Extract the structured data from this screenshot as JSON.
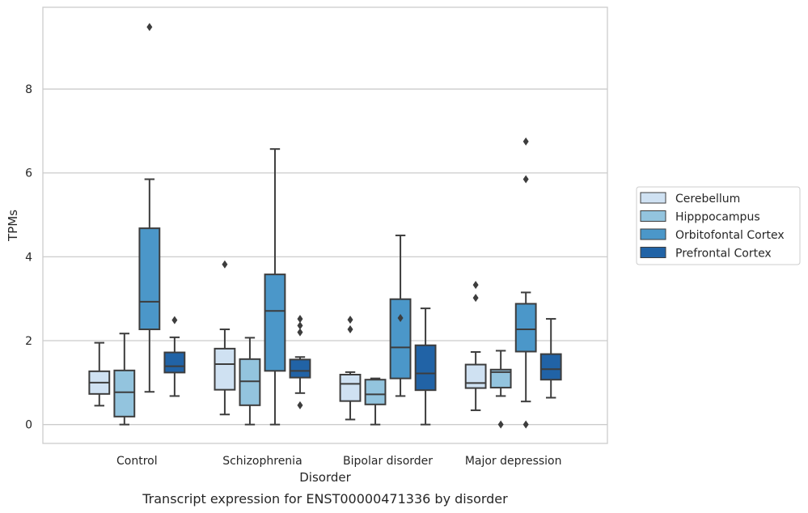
{
  "caption": "Transcript expression for ENST00000471336 by disorder",
  "chart_data": {
    "type": "box",
    "xlabel": "Disorder",
    "ylabel": "TPMs",
    "ylim": [
      -0.45,
      9.95
    ],
    "yticks": [
      0,
      2,
      4,
      6,
      8
    ],
    "grid": true,
    "legend_position": "right",
    "categories": [
      "Control",
      "Schizophrenia",
      "Bipolar disorder",
      "Major depression"
    ],
    "series": [
      {
        "name": "Cerebellum",
        "color": "#cfe1f2",
        "boxes": [
          {
            "whislo": 0.45,
            "q1": 0.73,
            "med": 1.0,
            "q3": 1.27,
            "whishi": 1.95,
            "fliers": []
          },
          {
            "whislo": 0.24,
            "q1": 0.83,
            "med": 1.44,
            "q3": 1.81,
            "whishi": 2.27,
            "fliers": [
              3.82
            ]
          },
          {
            "whislo": 0.12,
            "q1": 0.56,
            "med": 0.97,
            "q3": 1.19,
            "whishi": 1.25,
            "fliers": [
              2.27,
              2.5
            ]
          },
          {
            "whislo": 0.34,
            "q1": 0.87,
            "med": 0.99,
            "q3": 1.43,
            "whishi": 1.73,
            "fliers": [
              3.02,
              3.33
            ]
          }
        ]
      },
      {
        "name": "Hipppocampus",
        "color": "#93c4de",
        "boxes": [
          {
            "whislo": 0.0,
            "q1": 0.19,
            "med": 0.77,
            "q3": 1.29,
            "whishi": 2.17,
            "fliers": []
          },
          {
            "whislo": 0.0,
            "q1": 0.46,
            "med": 1.03,
            "q3": 1.56,
            "whishi": 2.07,
            "fliers": []
          },
          {
            "whislo": 0.0,
            "q1": 0.48,
            "med": 0.72,
            "q3": 1.07,
            "whishi": 1.1,
            "fliers": []
          },
          {
            "whislo": 0.68,
            "q1": 0.88,
            "med": 1.25,
            "q3": 1.31,
            "whishi": 1.76,
            "fliers": [
              0.0
            ]
          }
        ]
      },
      {
        "name": "Orbitofontal Cortex",
        "color": "#4b97c9",
        "boxes": [
          {
            "whislo": 0.78,
            "q1": 2.27,
            "med": 2.93,
            "q3": 4.68,
            "whishi": 5.85,
            "fliers": [
              9.48
            ]
          },
          {
            "whislo": 0.0,
            "q1": 1.28,
            "med": 2.71,
            "q3": 3.58,
            "whishi": 6.57,
            "fliers": []
          },
          {
            "whislo": 0.68,
            "q1": 1.1,
            "med": 1.84,
            "q3": 2.99,
            "whishi": 4.51,
            "fliers": [
              2.54
            ]
          },
          {
            "whislo": 0.55,
            "q1": 1.74,
            "med": 2.27,
            "q3": 2.88,
            "whishi": 3.15,
            "fliers": [
              0.0,
              5.85,
              6.75
            ]
          }
        ]
      },
      {
        "name": "Prefrontal Cortex",
        "color": "#2163a6",
        "boxes": [
          {
            "whislo": 0.68,
            "q1": 1.24,
            "med": 1.39,
            "q3": 1.72,
            "whishi": 2.08,
            "fliers": [
              2.49
            ]
          },
          {
            "whislo": 0.75,
            "q1": 1.12,
            "med": 1.28,
            "q3": 1.55,
            "whishi": 1.61,
            "fliers": [
              0.46,
              2.2,
              2.36,
              2.52
            ]
          },
          {
            "whislo": 0.0,
            "q1": 0.82,
            "med": 1.22,
            "q3": 1.89,
            "whishi": 2.77,
            "fliers": []
          },
          {
            "whislo": 0.64,
            "q1": 1.07,
            "med": 1.32,
            "q3": 1.68,
            "whishi": 2.52,
            "fliers": []
          }
        ]
      }
    ]
  }
}
